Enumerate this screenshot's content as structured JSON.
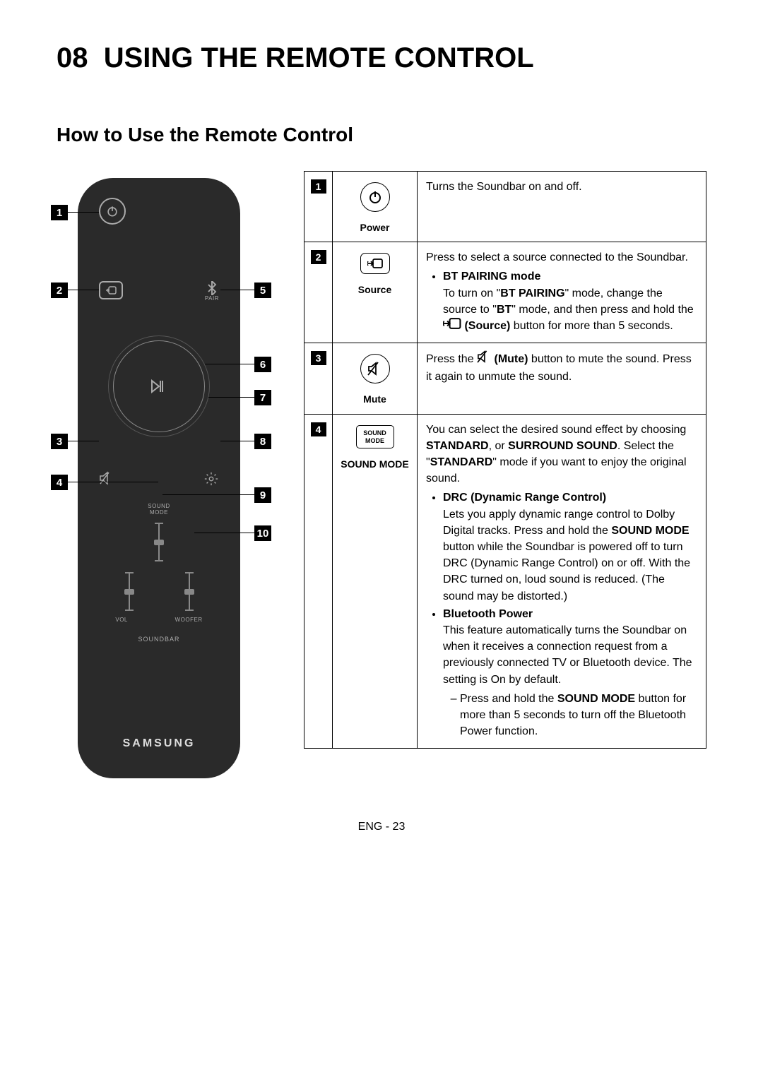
{
  "page": {
    "heading_num": "08",
    "heading_title": "USING THE REMOTE CONTROL",
    "subheading": "How to Use the Remote Control",
    "footer": "ENG - 23"
  },
  "remote": {
    "pair_label": "PAIR",
    "soundmode_top": "SOUND",
    "soundmode_bot": "MODE",
    "vol_label": "VOL",
    "woofer_label": "WOOFER",
    "soundbar_label": "SOUNDBAR",
    "brand": "SAMSUNG",
    "callouts": [
      "1",
      "2",
      "3",
      "4",
      "5",
      "6",
      "7",
      "8",
      "9",
      "10"
    ]
  },
  "table": {
    "rows": [
      {
        "num": "1",
        "icon_kind": "power",
        "label": "Power",
        "desc_para": "Turns the Soundbar on and off."
      },
      {
        "num": "2",
        "icon_kind": "source",
        "label": "Source",
        "desc_para": "Press to select a source connected to the Soundbar.",
        "bullets": [
          {
            "title": "BT PAIRING mode",
            "body_pre": "To turn on \"",
            "body_b1": "BT PAIRING",
            "body_mid": "\" mode, change the source to \"",
            "body_b2": "BT",
            "body_mid2": "\" mode, and then press and hold the ",
            "body_icon": "source-mini",
            "body_b3": "(Source)",
            "body_post": " button for more than 5 seconds."
          }
        ]
      },
      {
        "num": "3",
        "icon_kind": "mute",
        "label": "Mute",
        "desc_pre": "Press the ",
        "desc_icon": "mute-mini",
        "desc_b": "(Mute)",
        "desc_mid": " button to mute the sound. Press it again to unmute the sound."
      },
      {
        "num": "4",
        "icon_kind": "soundmode",
        "label": "SOUND MODE",
        "icon_top": "SOUND",
        "icon_bot": "MODE",
        "desc_pre": "You can select the desired sound effect by choosing ",
        "desc_b1": "STANDARD",
        "desc_mid1": ", or ",
        "desc_b2": "SURROUND SOUND",
        "desc_mid2": ". Select the \"",
        "desc_b3": "STANDARD",
        "desc_post": "\" mode if you want to enjoy the original sound.",
        "bullets": [
          {
            "title": "DRC (Dynamic Range Control)",
            "body": "Lets you apply dynamic range control to Dolby Digital tracks. Press and hold the ",
            "body_b": "SOUND MODE",
            "body_post": " button while the Soundbar is powered off to turn DRC (Dynamic Range Control) on or off. With the DRC turned on, loud sound is reduced. (The sound may be distorted.)"
          },
          {
            "title": "Bluetooth Power",
            "body": "This feature automatically turns the Soundbar on when it receives a connection request from a previously connected TV or Bluetooth device. The setting is On by default.",
            "sub": [
              {
                "pre": "Press and hold the ",
                "b": "SOUND MODE",
                "post": " button for more than 5 seconds to turn off the Bluetooth Power function."
              }
            ]
          }
        ]
      }
    ]
  }
}
